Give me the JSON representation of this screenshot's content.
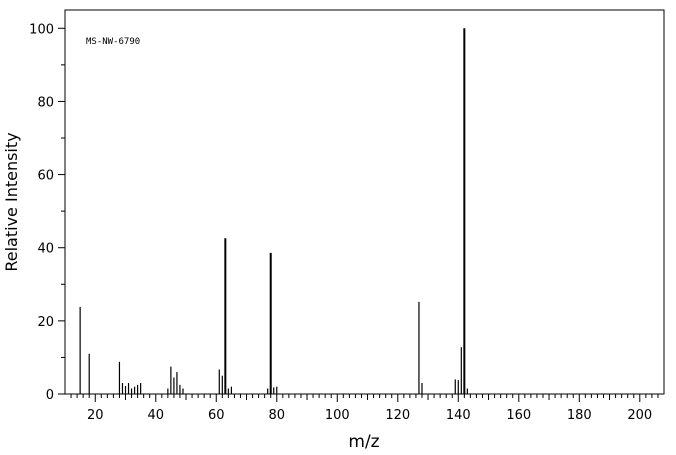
{
  "chart_data": {
    "type": "bar",
    "annotation": "MS-NW-6790",
    "xlabel": "m/z",
    "ylabel": "Relative Intensity",
    "xlim": [
      10,
      208
    ],
    "ylim": [
      0,
      105
    ],
    "x_ticks": [
      20,
      40,
      60,
      80,
      100,
      120,
      140,
      160,
      180,
      200
    ],
    "y_ticks": [
      0,
      20,
      40,
      60,
      80,
      100
    ],
    "grid": false,
    "peaks": {
      "x": [
        15,
        18,
        28,
        29,
        30,
        31,
        32,
        33,
        34,
        35,
        44,
        45,
        46,
        47,
        48,
        49,
        61,
        62,
        63,
        64,
        65,
        77,
        78,
        79,
        80,
        127,
        128,
        139,
        140,
        141,
        142,
        143
      ],
      "y": [
        23.8,
        11.0,
        8.8,
        3.0,
        2.2,
        3.0,
        1.5,
        2.0,
        2.5,
        3.0,
        1.5,
        7.5,
        4.5,
        6.0,
        2.5,
        1.5,
        6.7,
        5.0,
        42.6,
        1.5,
        2.0,
        1.5,
        38.6,
        1.8,
        2.0,
        25.2,
        3.0,
        4.0,
        3.8,
        12.8,
        100.0,
        1.5
      ]
    }
  }
}
